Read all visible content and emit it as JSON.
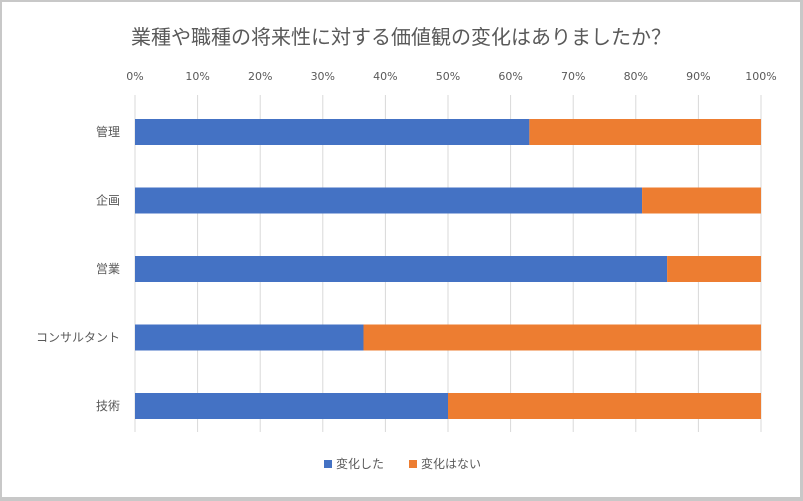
{
  "chart_data": {
    "type": "bar",
    "orientation": "horizontal",
    "stacked": true,
    "title": "業種や職種の将来性に対する価値観の変化はありましたか？",
    "categories": [
      "管理",
      "企画",
      "営業",
      "コンサルタント",
      "技術"
    ],
    "series": [
      {
        "name": "変化した",
        "values": [
          63,
          81,
          85,
          36.5,
          50
        ],
        "color": "#4472C4"
      },
      {
        "name": "変化はない",
        "values": [
          37,
          19,
          15,
          63.5,
          50
        ],
        "color": "#ED7D31"
      }
    ],
    "x_ticks": [
      "0%",
      "10%",
      "20%",
      "30%",
      "40%",
      "50%",
      "60%",
      "70%",
      "80%",
      "90%",
      "100%"
    ],
    "xlim": [
      0,
      100
    ],
    "x_axis_position": "top",
    "grid": true,
    "legend": "bottom"
  }
}
